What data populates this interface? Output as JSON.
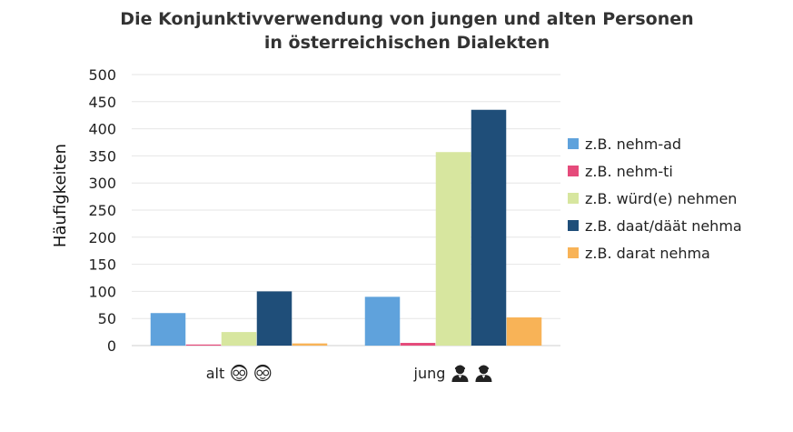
{
  "chart_data": {
    "type": "bar",
    "title": [
      "Die Konjunktivverwendung von jungen und alten Personen",
      "in österreichischen Dialekten"
    ],
    "ylabel": "Häufigkeiten",
    "xlabel": "",
    "ylim": [
      0,
      500
    ],
    "yticks": [
      0,
      50,
      100,
      150,
      200,
      250,
      300,
      350,
      400,
      450,
      500
    ],
    "grid": true,
    "legend_position": "right",
    "categories": [
      "alt",
      "jung"
    ],
    "category_icons": [
      [
        "elderly-face-icon",
        "elderly-face-icon"
      ],
      [
        "young-person-icon",
        "young-person-icon"
      ]
    ],
    "series": [
      {
        "name": "z.B. nehm-ad",
        "values": [
          60,
          90
        ],
        "color": "#5fa2dc"
      },
      {
        "name": "z.B. nehm-ti",
        "values": [
          2,
          5
        ],
        "color": "#e54b7b"
      },
      {
        "name": "z.B. würd(e) nehmen",
        "values": [
          25,
          357
        ],
        "color": "#d7e69f"
      },
      {
        "name": "z.B. daat/däät nehma",
        "values": [
          100,
          435
        ],
        "color": "#1f4e79"
      },
      {
        "name": "z.B. darat nehma",
        "values": [
          4,
          52
        ],
        "color": "#f8b357"
      }
    ]
  }
}
